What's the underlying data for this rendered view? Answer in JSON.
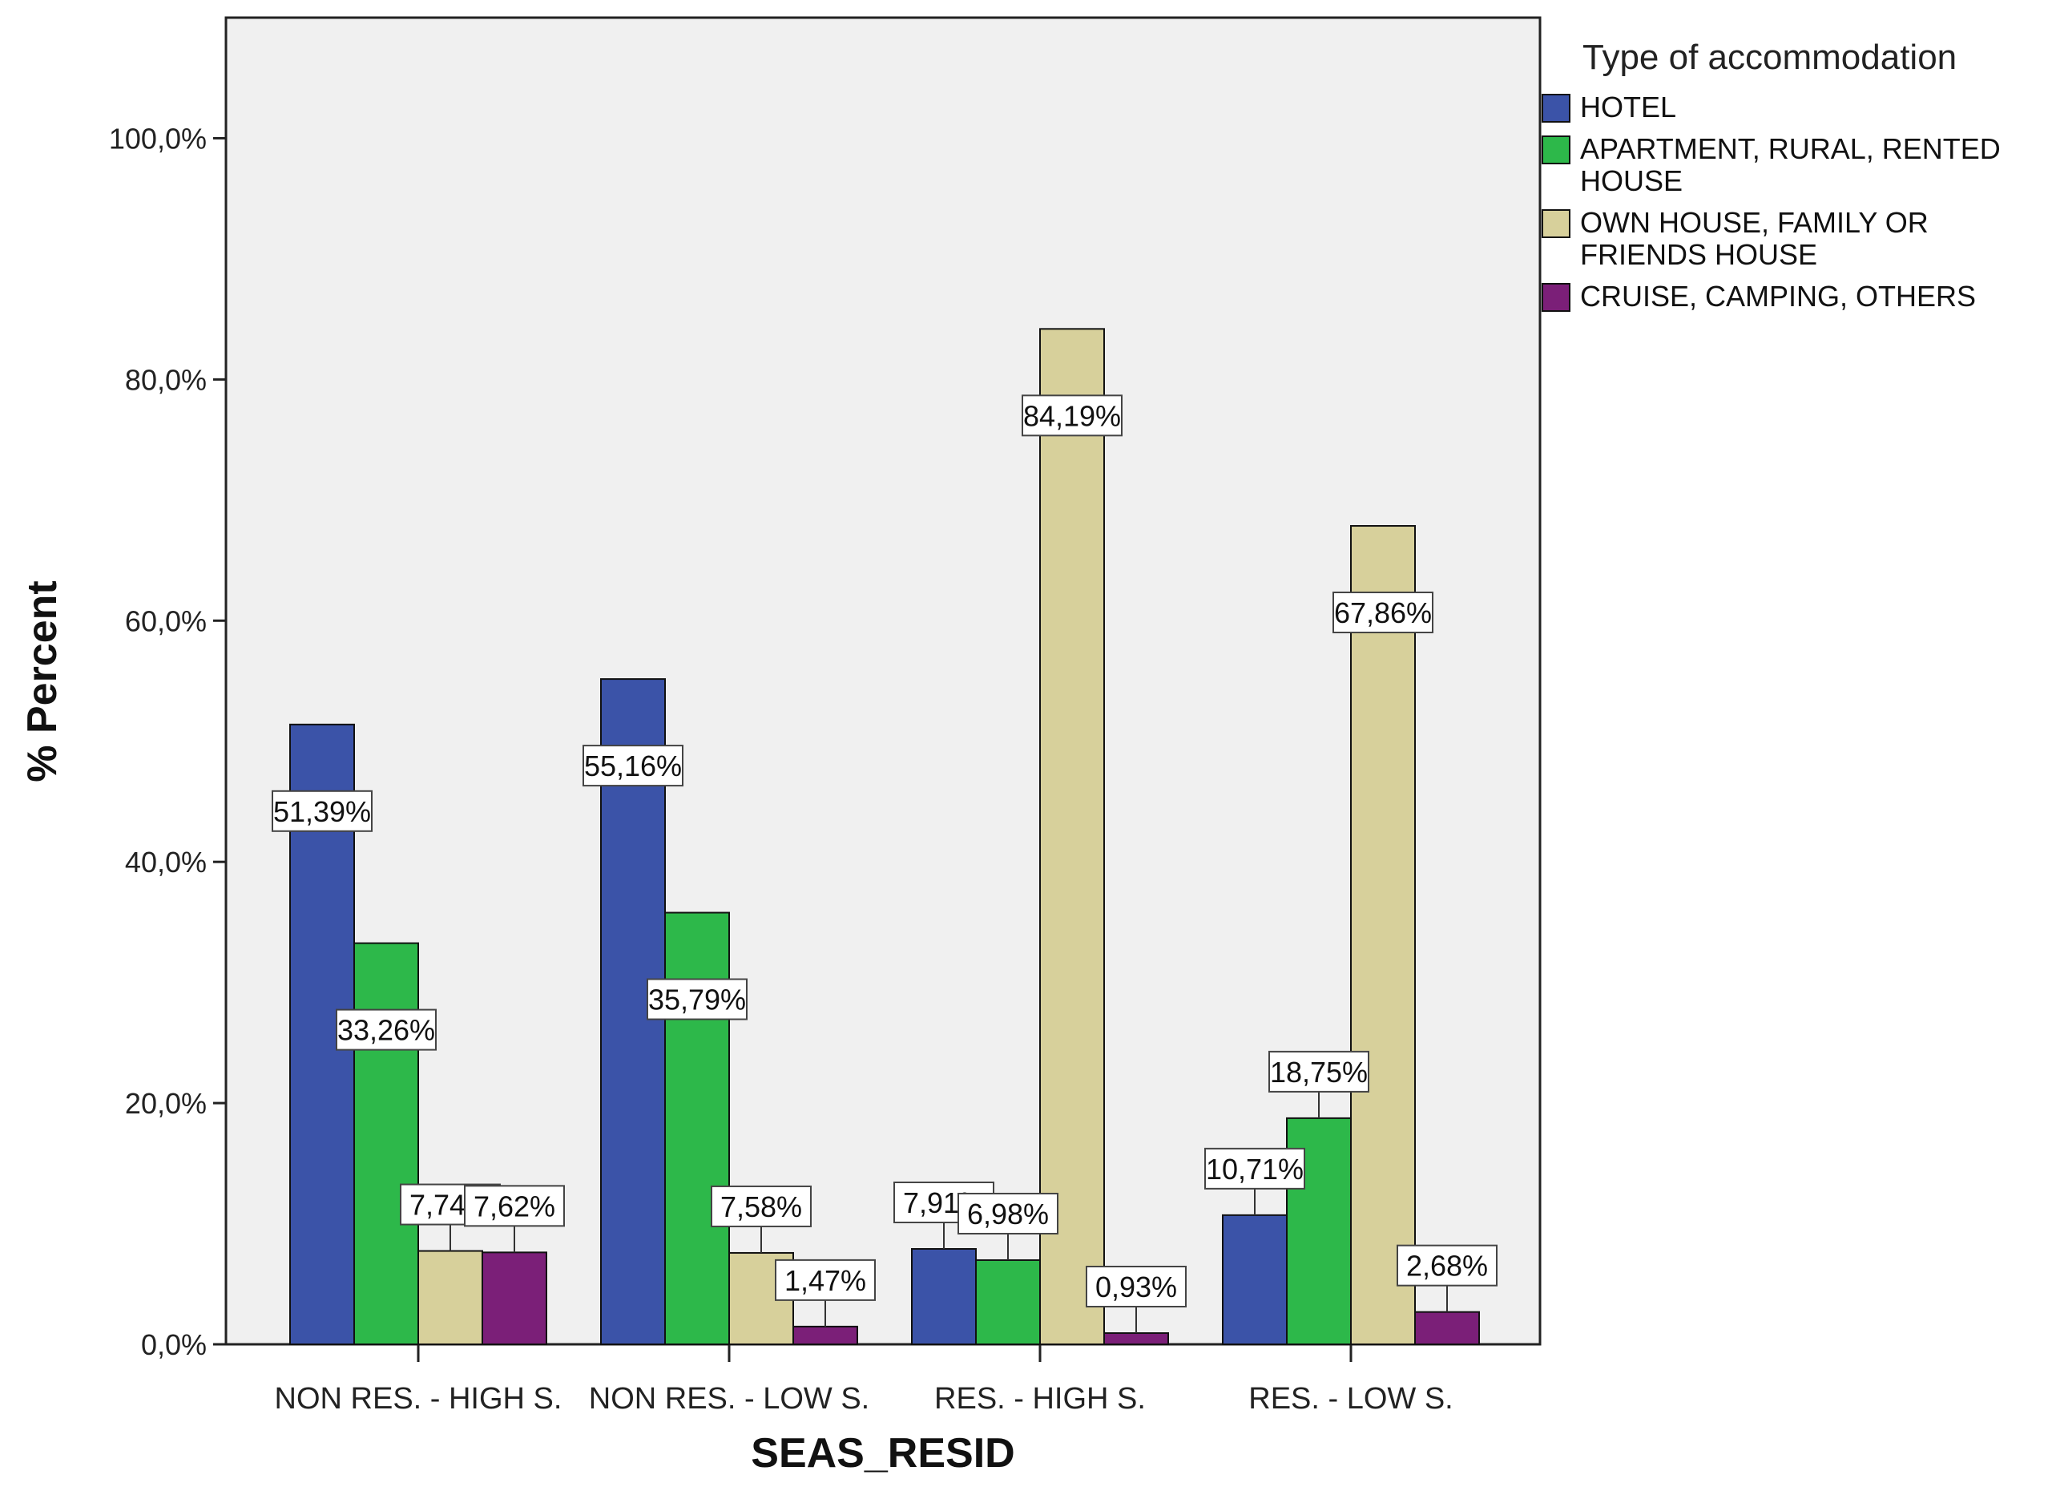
{
  "chart_data": {
    "type": "bar",
    "title": "",
    "xlabel": "SEAS_RESID",
    "ylabel": "% Percent",
    "ylim": [
      0,
      110
    ],
    "yticks": [
      0,
      20,
      40,
      60,
      80,
      100
    ],
    "ytick_labels": [
      "0,0%",
      "20,0%",
      "40,0%",
      "60,0%",
      "80,0%",
      "100,0%"
    ],
    "grid": false,
    "legend_position": "right",
    "legend_title": "Type of accommodation",
    "categories": [
      "NON RES. - HIGH S.",
      "NON RES. - LOW S.",
      "RES. - HIGH S.",
      "RES. - LOW S."
    ],
    "series": [
      {
        "name": "HOTEL",
        "legend_lines": [
          "HOTEL"
        ],
        "color": "#3b53a8",
        "values": [
          51.39,
          55.16,
          7.91,
          10.71
        ],
        "labels": [
          "51,39%",
          "55,16%",
          "7,91%",
          "10,71%"
        ]
      },
      {
        "name": "APARTMENT, RURAL, RENTED HOUSE",
        "legend_lines": [
          "APARTMENT, RURAL,  RENTED",
          "HOUSE"
        ],
        "color": "#2db84a",
        "values": [
          33.26,
          35.79,
          6.98,
          18.75
        ],
        "labels": [
          "33,26%",
          "35,79%",
          "6,98%",
          "18,75%"
        ]
      },
      {
        "name": "OWN HOUSE, FAMILY OR FRIENDS HOUSE",
        "legend_lines": [
          "OWN HOUSE, FAMILY OR",
          "FRIENDS HOUSE"
        ],
        "color": "#d7d09b",
        "values": [
          7.74,
          7.58,
          84.19,
          67.86
        ],
        "labels": [
          "7,74%",
          "7,58%",
          "84,19%",
          "67,86%"
        ]
      },
      {
        "name": "CRUISE, CAMPING, OTHERS",
        "legend_lines": [
          "CRUISE, CAMPING, OTHERS"
        ],
        "color": "#7b1f78",
        "values": [
          7.62,
          1.47,
          0.93,
          2.68
        ],
        "labels": [
          "7,62%",
          "1,47%",
          "0,93%",
          "2,68%"
        ]
      }
    ]
  }
}
